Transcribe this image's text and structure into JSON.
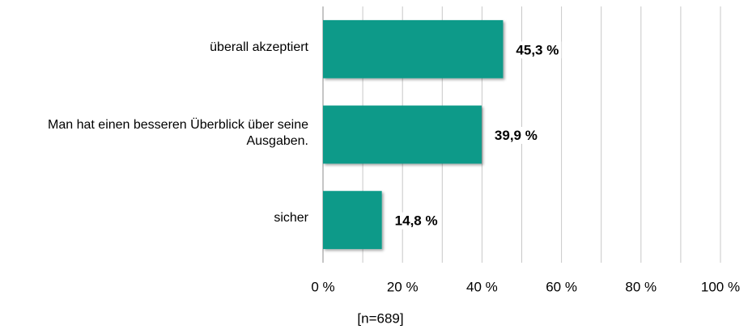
{
  "chart_data": {
    "type": "barh",
    "categories": [
      "überall akzeptiert",
      "Man hat einen besseren Überblick über seine Ausgaben.",
      "sicher"
    ],
    "values": [
      45.3,
      39.9,
      14.8
    ],
    "value_labels": [
      "45,3 %",
      "39,9 %",
      "14,8 %"
    ],
    "color": "#079a89",
    "xlim": [
      0,
      100
    ],
    "xticks": [
      {
        "value": 0,
        "label": "0 %"
      },
      {
        "value": 20,
        "label": "20 %"
      },
      {
        "value": 40,
        "label": "40 %"
      },
      {
        "value": 60,
        "label": "60 %"
      },
      {
        "value": 80,
        "label": "80 %"
      },
      {
        "value": 100,
        "label": "100 %"
      }
    ],
    "minor_xticks": [
      10,
      30,
      50,
      70,
      90
    ],
    "grid": true,
    "note": "[n=689]"
  }
}
